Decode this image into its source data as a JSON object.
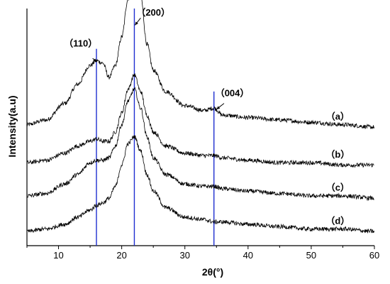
{
  "chart_data": {
    "type": "line",
    "xlabel": "2θ(°)",
    "ylabel": "Intensity(a.u)",
    "xlim": [
      5,
      60
    ],
    "xticks": [
      "10",
      "20",
      "30",
      "40",
      "50",
      "60"
    ],
    "ylim": [
      0,
      1
    ],
    "reference_lines_x": [
      16.0,
      22.0,
      34.6
    ],
    "annotations": [
      {
        "label": "（110）",
        "x": 16.0,
        "y": 0.86
      },
      {
        "label": "（200）",
        "x": 22.0,
        "y": 0.98
      },
      {
        "label": "（004）",
        "x": 34.6,
        "y": 0.54
      }
    ],
    "series": [
      {
        "name": "（a）",
        "offset": 0.5,
        "x": [
          5,
          8,
          11,
          13,
          15,
          16,
          17,
          18,
          19,
          20,
          21,
          22,
          23,
          24,
          25,
          27,
          30,
          33,
          34.6,
          36,
          40,
          45,
          50,
          55,
          60
        ],
        "y": [
          0.01,
          0.03,
          0.1,
          0.18,
          0.26,
          0.28,
          0.27,
          0.21,
          0.26,
          0.38,
          0.54,
          0.68,
          0.55,
          0.35,
          0.24,
          0.15,
          0.09,
          0.07,
          0.08,
          0.05,
          0.04,
          0.03,
          0.02,
          0.01,
          0.0
        ]
      },
      {
        "name": "（b）",
        "offset": 0.34,
        "x": [
          5,
          8,
          11,
          13,
          15,
          16,
          17,
          18,
          19,
          20,
          21,
          22,
          23,
          24,
          25,
          27,
          30,
          33,
          34.6,
          36,
          40,
          45,
          50,
          55,
          60
        ],
        "y": [
          0.01,
          0.02,
          0.05,
          0.08,
          0.1,
          0.11,
          0.1,
          0.1,
          0.14,
          0.22,
          0.32,
          0.38,
          0.31,
          0.21,
          0.14,
          0.08,
          0.05,
          0.04,
          0.04,
          0.03,
          0.02,
          0.01,
          0.01,
          0.0,
          0.0
        ]
      },
      {
        "name": "（c）",
        "offset": 0.2,
        "x": [
          5,
          8,
          11,
          13,
          15,
          16,
          17,
          18,
          19,
          20,
          21,
          22,
          23,
          24,
          25,
          27,
          30,
          33,
          34.6,
          36,
          40,
          45,
          50,
          55,
          60
        ],
        "y": [
          0.01,
          0.02,
          0.06,
          0.1,
          0.15,
          0.16,
          0.16,
          0.17,
          0.22,
          0.31,
          0.41,
          0.46,
          0.38,
          0.26,
          0.17,
          0.1,
          0.06,
          0.05,
          0.05,
          0.04,
          0.03,
          0.02,
          0.01,
          0.01,
          0.0
        ]
      },
      {
        "name": "（d）",
        "offset": 0.06,
        "x": [
          5,
          8,
          11,
          13,
          15,
          16,
          17,
          18,
          19,
          20,
          21,
          22,
          23,
          24,
          25,
          27,
          30,
          33,
          34.6,
          36,
          40,
          45,
          50,
          55,
          60
        ],
        "y": [
          0.0,
          0.01,
          0.03,
          0.06,
          0.09,
          0.11,
          0.12,
          0.14,
          0.19,
          0.28,
          0.37,
          0.4,
          0.34,
          0.24,
          0.17,
          0.1,
          0.06,
          0.05,
          0.04,
          0.04,
          0.03,
          0.02,
          0.01,
          0.01,
          0.0
        ]
      }
    ],
    "colors": {
      "curves": "#000000",
      "reference_lines": "#1f2fd0",
      "axes": "#000000"
    }
  }
}
